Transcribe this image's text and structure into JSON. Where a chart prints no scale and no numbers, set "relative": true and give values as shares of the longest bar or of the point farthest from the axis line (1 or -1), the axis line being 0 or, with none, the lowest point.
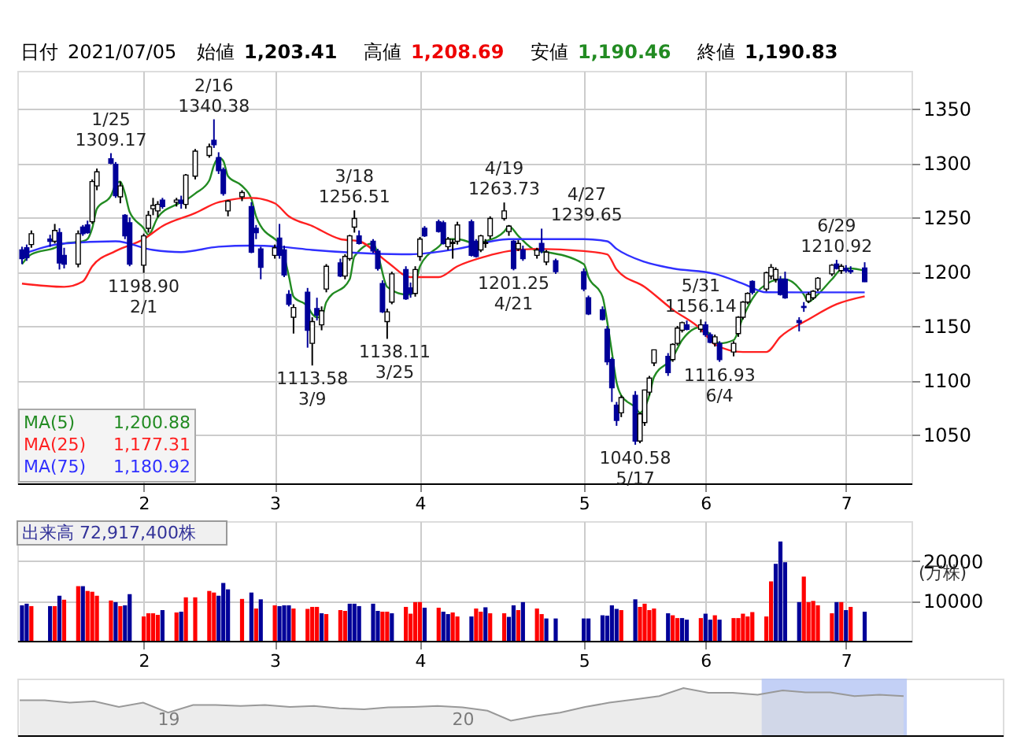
{
  "chart_data": [
    {
      "type": "candlestick",
      "title": "日付 2021/07/05 始値 1,203.41 高値 1,208.69 安値 1,190.46 終値 1,190.83",
      "x": [
        "2021-01-06",
        "2021-01-07",
        "2021-01-08",
        "2021-01-12",
        "2021-01-13",
        "2021-01-14",
        "2021-01-15",
        "2021-01-18",
        "2021-01-19",
        "2021-01-20",
        "2021-01-21",
        "2021-01-22",
        "2021-01-25",
        "2021-01-26",
        "2021-01-27",
        "2021-01-28",
        "2021-01-29",
        "2021-02-01",
        "2021-02-02",
        "2021-02-03",
        "2021-02-04",
        "2021-02-05",
        "2021-02-08",
        "2021-02-09",
        "2021-02-10",
        "2021-02-12",
        "2021-02-15",
        "2021-02-16",
        "2021-02-17",
        "2021-02-18",
        "2021-02-19",
        "2021-02-22",
        "2021-02-24",
        "2021-02-25",
        "2021-02-26",
        "2021-03-01",
        "2021-03-02",
        "2021-03-03",
        "2021-03-04",
        "2021-03-05",
        "2021-03-08",
        "2021-03-09",
        "2021-03-10",
        "2021-03-11",
        "2021-03-12",
        "2021-03-15",
        "2021-03-16",
        "2021-03-17",
        "2021-03-18",
        "2021-03-19",
        "2021-03-22",
        "2021-03-23",
        "2021-03-24",
        "2021-03-25",
        "2021-03-26",
        "2021-03-29",
        "2021-03-30",
        "2021-03-31",
        "2021-04-01",
        "2021-04-02",
        "2021-04-05",
        "2021-04-06",
        "2021-04-07",
        "2021-04-08",
        "2021-04-09",
        "2021-04-12",
        "2021-04-13",
        "2021-04-14",
        "2021-04-15",
        "2021-04-16",
        "2021-04-19",
        "2021-04-20",
        "2021-04-21",
        "2021-04-22",
        "2021-04-23",
        "2021-04-26",
        "2021-04-27",
        "2021-04-28",
        "2021-04-30",
        "2021-05-06",
        "2021-05-07",
        "2021-05-10",
        "2021-05-11",
        "2021-05-12",
        "2021-05-13",
        "2021-05-14",
        "2021-05-17",
        "2021-05-18",
        "2021-05-19",
        "2021-05-20",
        "2021-05-21",
        "2021-05-24",
        "2021-05-25",
        "2021-05-26",
        "2021-05-27",
        "2021-05-28",
        "2021-05-31",
        "2021-06-01",
        "2021-06-02",
        "2021-06-03",
        "2021-06-04",
        "2021-06-07",
        "2021-06-08",
        "2021-06-09",
        "2021-06-10",
        "2021-06-11",
        "2021-06-14",
        "2021-06-15",
        "2021-06-16",
        "2021-06-17",
        "2021-06-18",
        "2021-06-21",
        "2021-06-22",
        "2021-06-23",
        "2021-06-24",
        "2021-06-25",
        "2021-06-28",
        "2021-06-29",
        "2021-06-30",
        "2021-07-01",
        "2021-07-02",
        "2021-07-05"
      ],
      "ohlc": [
        [
          1220,
          1223,
          1207,
          1212
        ],
        [
          1222,
          1225,
          1210,
          1213
        ],
        [
          1225,
          1238,
          1222,
          1235
        ],
        [
          1230,
          1234,
          1223,
          1228
        ],
        [
          1228,
          1244,
          1226,
          1238
        ],
        [
          1236,
          1240,
          1202,
          1208
        ],
        [
          1215,
          1222,
          1203,
          1207
        ],
        [
          1207,
          1238,
          1204,
          1235
        ],
        [
          1241,
          1243,
          1233,
          1235
        ],
        [
          1243,
          1247,
          1235,
          1236
        ],
        [
          1246,
          1285,
          1244,
          1283
        ],
        [
          1279,
          1295,
          1275,
          1292
        ],
        [
          1304,
          1309.17,
          1299,
          1300
        ],
        [
          1299,
          1301,
          1268,
          1270
        ],
        [
          1269,
          1283,
          1263,
          1279
        ],
        [
          1252,
          1253,
          1230,
          1233
        ],
        [
          1245,
          1250,
          1205,
          1207
        ],
        [
          1206,
          1235,
          1198.9,
          1233
        ],
        [
          1240,
          1256,
          1236,
          1252
        ],
        [
          1258,
          1268,
          1252,
          1261
        ],
        [
          1256,
          1265,
          1250,
          1262
        ],
        [
          1266,
          1268,
          1258,
          1260
        ],
        [
          1264,
          1268,
          1260,
          1266
        ],
        [
          1266,
          1270,
          1258,
          1263
        ],
        [
          1262,
          1290,
          1258,
          1289
        ],
        [
          1288,
          1313,
          1285,
          1311
        ],
        [
          1307,
          1318,
          1305,
          1315
        ],
        [
          1321,
          1340.38,
          1314,
          1317
        ],
        [
          1305,
          1310,
          1290,
          1293
        ],
        [
          1294,
          1296,
          1270,
          1272
        ],
        [
          1256,
          1266,
          1251,
          1265
        ],
        [
          1269,
          1275,
          1265,
          1273
        ],
        [
          1260,
          1264,
          1217,
          1218
        ],
        [
          1240,
          1243,
          1230,
          1236
        ],
        [
          1221,
          1223,
          1193,
          1204
        ],
        [
          1215,
          1225,
          1212,
          1222
        ],
        [
          1231,
          1244,
          1212,
          1215
        ],
        [
          1220,
          1224,
          1195,
          1197
        ],
        [
          1179,
          1183,
          1168,
          1170
        ],
        [
          1158,
          1170,
          1143,
          1167
        ],
        [
          1181,
          1185,
          1130,
          1146
        ],
        [
          1134,
          1158,
          1113.58,
          1154
        ],
        [
          1166,
          1176,
          1155,
          1160
        ],
        [
          1151,
          1168,
          1146,
          1164
        ],
        [
          1184,
          1207,
          1181,
          1205
        ],
        [
          1208,
          1212,
          1195,
          1196
        ],
        [
          1196,
          1216,
          1193,
          1214
        ],
        [
          1212,
          1234,
          1210,
          1233
        ],
        [
          1241,
          1256.51,
          1236,
          1249
        ],
        [
          1233,
          1238,
          1225,
          1226
        ],
        [
          1228,
          1230,
          1217,
          1219
        ],
        [
          1219,
          1221,
          1201,
          1203
        ],
        [
          1189,
          1192,
          1162,
          1163
        ],
        [
          1154,
          1166,
          1138.11,
          1163
        ],
        [
          1172,
          1200,
          1170,
          1198
        ],
        [
          1202,
          1205,
          1174,
          1175
        ],
        [
          1185,
          1190,
          1176,
          1180
        ],
        [
          1180,
          1205,
          1177,
          1202
        ],
        [
          1214,
          1232,
          1210,
          1230
        ],
        [
          1240,
          1242,
          1232,
          1233
        ],
        [
          1246,
          1248,
          1236,
          1237
        ],
        [
          1245,
          1247,
          1225,
          1226
        ],
        [
          1223,
          1232,
          1220,
          1230
        ],
        [
          1226,
          1230,
          1212,
          1227
        ],
        [
          1228,
          1246,
          1225,
          1243
        ],
        [
          1246,
          1248,
          1214,
          1215
        ],
        [
          1228,
          1230,
          1213,
          1214
        ],
        [
          1220,
          1234,
          1218,
          1233
        ],
        [
          1226,
          1230,
          1222,
          1227
        ],
        [
          1233,
          1251,
          1230,
          1249
        ],
        [
          1249,
          1263.73,
          1247,
          1256
        ],
        [
          1237,
          1243,
          1233,
          1242
        ],
        [
          1228,
          1229,
          1201.25,
          1203
        ],
        [
          1221,
          1229,
          1219,
          1226
        ],
        [
          1220,
          1224,
          1210,
          1212
        ],
        [
          1215,
          1222,
          1212,
          1220
        ],
        [
          1226,
          1239.65,
          1217,
          1219
        ],
        [
          1209,
          1220,
          1206,
          1218
        ],
        [
          1210,
          1212,
          1198,
          1200
        ],
        [
          1200,
          1203,
          1182,
          1184
        ],
        [
          1176,
          1178,
          1160,
          1161
        ],
        [
          1165,
          1168,
          1155,
          1156
        ],
        [
          1147,
          1150,
          1114,
          1117
        ],
        [
          1119,
          1121,
          1080,
          1093
        ],
        [
          1077,
          1080,
          1058,
          1063
        ],
        [
          1070,
          1086,
          1066,
          1084
        ],
        [
          1086,
          1090,
          1040.58,
          1044
        ],
        [
          1044,
          1070,
          1042,
          1069
        ],
        [
          1061,
          1091,
          1058,
          1091
        ],
        [
          1089,
          1104,
          1086,
          1102
        ],
        [
          1116,
          1128,
          1113,
          1128
        ],
        [
          1122,
          1125,
          1104,
          1107
        ],
        [
          1119,
          1134,
          1117,
          1133
        ],
        [
          1134,
          1150,
          1132,
          1148
        ],
        [
          1146,
          1154,
          1144,
          1153
        ],
        [
          1151,
          1155,
          1146,
          1147
        ],
        [
          1147,
          1156.14,
          1144,
          1151
        ],
        [
          1151,
          1154,
          1140,
          1142
        ],
        [
          1142,
          1144,
          1134,
          1135
        ],
        [
          1134,
          1142,
          1131,
          1140
        ],
        [
          1134,
          1136,
          1116.93,
          1119
        ],
        [
          1126,
          1136,
          1122,
          1134
        ],
        [
          1143,
          1159,
          1140,
          1158
        ],
        [
          1158,
          1173,
          1156,
          1172
        ],
        [
          1172,
          1181,
          1170,
          1180
        ],
        [
          1191,
          1192,
          1179,
          1181
        ],
        [
          1184,
          1200,
          1182,
          1199
        ],
        [
          1196,
          1207,
          1193,
          1204
        ],
        [
          1193,
          1204,
          1190,
          1202
        ],
        [
          1193,
          1196,
          1178,
          1179
        ],
        [
          1193,
          1200,
          1175,
          1176
        ],
        [
          1155,
          1158,
          1145,
          1153
        ],
        [
          1168,
          1172,
          1163,
          1167
        ],
        [
          1173,
          1181,
          1171,
          1179
        ],
        [
          1176,
          1183,
          1174,
          1182
        ],
        [
          1184,
          1195,
          1182,
          1194
        ],
        [
          1198,
          1207,
          1196,
          1206
        ],
        [
          1207,
          1210.92,
          1202,
          1203
        ],
        [
          1201,
          1207,
          1198,
          1205
        ],
        [
          1203,
          1206,
          1199,
          1201
        ],
        [
          1201,
          1205,
          1198,
          1200
        ],
        [
          1203.41,
          1208.69,
          1190.46,
          1190.83
        ]
      ],
      "series": [
        {
          "name": "MA(5)",
          "type": "line",
          "color": "#228b22",
          "x": [
            "2021-01-06",
            "2021-01-08",
            "2021-01-13",
            "2021-01-15",
            "2021-01-19",
            "2021-01-20",
            "2021-01-21",
            "2021-01-22",
            "2021-01-25",
            "2021-01-26",
            "2021-01-27",
            "2021-01-28",
            "2021-01-29",
            "2021-02-01",
            "2021-02-02",
            "2021-02-04",
            "2021-02-08",
            "2021-02-10",
            "2021-02-12",
            "2021-02-15",
            "2021-02-16",
            "2021-02-17",
            "2021-02-18",
            "2021-02-19",
            "2021-02-22",
            "2021-02-24",
            "2021-02-25",
            "2021-02-26",
            "2021-03-01",
            "2021-03-02",
            "2021-03-03",
            "2021-03-04",
            "2021-03-05",
            "2021-03-08",
            "2021-03-09",
            "2021-03-10",
            "2021-03-11",
            "2021-03-12",
            "2021-03-17",
            "2021-03-18",
            "2021-03-22",
            "2021-03-23",
            "2021-03-25",
            "2021-03-29",
            "2021-03-30",
            "2021-03-31",
            "2021-04-01",
            "2021-04-05",
            "2021-04-07",
            "2021-04-09",
            "2021-04-13",
            "2021-04-15",
            "2021-04-19",
            "2021-04-20",
            "2021-04-22",
            "2021-04-26",
            "2021-04-28",
            "2021-05-06",
            "2021-05-07",
            "2021-05-10",
            "2021-05-11",
            "2021-05-12",
            "2021-05-13",
            "2021-05-14",
            "2021-05-17",
            "2021-05-18",
            "2021-05-19",
            "2021-05-20",
            "2021-05-21",
            "2021-05-25",
            "2021-05-27",
            "2021-05-31",
            "2021-06-02",
            "2021-06-04",
            "2021-06-07",
            "2021-06-09",
            "2021-06-11",
            "2021-06-15",
            "2021-06-17",
            "2021-06-18",
            "2021-06-22",
            "2021-06-23",
            "2021-06-24",
            "2021-06-28",
            "2021-06-30",
            "2021-07-02",
            "2021-07-05"
          ],
          "values": [
            1207,
            1216,
            1222,
            1226,
            1228,
            1230,
            1240,
            1258,
            1270,
            1280,
            1283,
            1272,
            1255,
            1240,
            1234,
            1250,
            1262,
            1266,
            1272,
            1284,
            1298,
            1305,
            1302,
            1288,
            1279,
            1267,
            1251,
            1242,
            1230,
            1226,
            1214,
            1196,
            1177,
            1168,
            1161,
            1158,
            1158,
            1172,
            1193,
            1214,
            1226,
            1216,
            1186,
            1179,
            1179,
            1186,
            1205,
            1223,
            1230,
            1230,
            1226,
            1228,
            1237,
            1242,
            1233,
            1219,
            1218,
            1207,
            1195,
            1177,
            1154,
            1126,
            1098,
            1086,
            1075,
            1070,
            1075,
            1086,
            1103,
            1121,
            1137,
            1149,
            1142,
            1134,
            1137,
            1158,
            1175,
            1191,
            1193,
            1193,
            1179,
            1172,
            1175,
            1193,
            1202,
            1203,
            1200.88
          ]
        },
        {
          "name": "MA(25)",
          "type": "line",
          "color": "#ff2020",
          "x": [
            "2021-01-06",
            "2021-01-15",
            "2021-01-19",
            "2021-01-21",
            "2021-01-26",
            "2021-02-01",
            "2021-02-05",
            "2021-02-12",
            "2021-02-17",
            "2021-02-24",
            "2021-03-01",
            "2021-03-04",
            "2021-03-09",
            "2021-03-15",
            "2021-03-19",
            "2021-03-25",
            "2021-03-30",
            "2021-04-05",
            "2021-04-09",
            "2021-04-15",
            "2021-04-20",
            "2021-04-26",
            "2021-05-06",
            "2021-05-11",
            "2021-05-13",
            "2021-05-19",
            "2021-05-25",
            "2021-05-31",
            "2021-06-03",
            "2021-06-09",
            "2021-06-14",
            "2021-06-17",
            "2021-06-23",
            "2021-06-29",
            "2021-07-05"
          ],
          "values": [
            1189,
            1186,
            1191,
            1205,
            1219,
            1230,
            1242,
            1254,
            1264,
            1268,
            1263,
            1251,
            1242,
            1230,
            1228,
            1209,
            1195,
            1195,
            1205,
            1214,
            1219,
            1221,
            1219,
            1216,
            1202,
            1186,
            1165,
            1147,
            1133,
            1126,
            1126,
            1140,
            1156,
            1170,
            1177.31
          ]
        },
        {
          "name": "MA(75)",
          "type": "line",
          "color": "#3030ff",
          "x": [
            "2021-01-06",
            "2021-01-15",
            "2021-01-26",
            "2021-02-03",
            "2021-02-09",
            "2021-02-17",
            "2021-02-24",
            "2021-03-02",
            "2021-03-09",
            "2021-03-30",
            "2021-04-09",
            "2021-04-20",
            "2021-05-06",
            "2021-05-11",
            "2021-05-13",
            "2021-05-19",
            "2021-05-25",
            "2021-06-03",
            "2021-06-09",
            "2021-06-14",
            "2021-07-05"
          ],
          "values": [
            1216,
            1226,
            1228,
            1220,
            1218,
            1223,
            1224,
            1223,
            1220,
            1216,
            1221,
            1230,
            1230,
            1228,
            1221,
            1209,
            1203,
            1198,
            1189,
            1181,
            1180.92
          ]
        }
      ],
      "ylim": [
        1005,
        1385
      ],
      "yticks": [
        1050,
        1100,
        1150,
        1200,
        1250,
        1300,
        1350
      ],
      "xlim": [
        "2021-01-05",
        "2021-07-15"
      ],
      "xticks": [
        {
          "value": "2021-02-01",
          "label": "2"
        },
        {
          "value": "2021-03-01",
          "label": "3"
        },
        {
          "value": "2021-04-01",
          "label": "4"
        },
        {
          "value": "2021-05-06",
          "label": "5"
        },
        {
          "value": "2021-06-01",
          "label": "6"
        },
        {
          "value": "2021-07-01",
          "label": "7"
        }
      ],
      "grid": true,
      "legend": "bottom left",
      "annotations": [
        "1,200.88",
        "1,177.31",
        "1,180.92",
        {
          "text": "1/25",
          "x": "2021-01-25",
          "y": 1309.17
        },
        {
          "text": "1309.17",
          "x": "2021-01-25",
          "y": 1309.17
        },
        {
          "text": "1198.90",
          "x": "2021-02-01",
          "y": 1198.9
        },
        {
          "text": "2/1",
          "x": "2021-02-01",
          "y": 1198.9
        },
        {
          "text": "2/16",
          "x": "2021-02-16",
          "y": 1340.38
        },
        {
          "text": "1340.38",
          "x": "2021-02-16",
          "y": 1340.38
        },
        {
          "text": "1113.58",
          "x": "2021-03-09",
          "y": 1113.58
        },
        {
          "text": "3/9",
          "x": "2021-03-09",
          "y": 1113.58
        },
        {
          "text": "3/18",
          "x": "2021-03-18",
          "y": 1256.51
        },
        {
          "text": "1256.51",
          "x": "2021-03-18",
          "y": 1256.51
        },
        {
          "text": "1138.11",
          "x": "2021-03-25",
          "y": 1138.11
        },
        {
          "text": "3/25",
          "x": "2021-03-25",
          "y": 1138.11
        },
        {
          "text": "4/19",
          "x": "2021-04-19",
          "y": 1263.73
        },
        {
          "text": "1263.73",
          "x": "2021-04-19",
          "y": 1263.73
        },
        {
          "text": "1201.25",
          "x": "2021-04-21",
          "y": 1201.25
        },
        {
          "text": "4/21",
          "x": "2021-04-21",
          "y": 1201.25
        },
        {
          "text": "4/27",
          "x": "2021-04-27",
          "y": 1239.65
        },
        {
          "text": "1239.65",
          "x": "2021-04-27",
          "y": 1239.65
        },
        {
          "text": "1040.58",
          "x": "2021-05-17",
          "y": 1040.58
        },
        {
          "text": "5/17",
          "x": "2021-05-17",
          "y": 1040.58
        },
        {
          "text": "5/31",
          "x": "2021-05-31",
          "y": 1156.14
        },
        {
          "text": "1156.14",
          "x": "2021-05-31",
          "y": 1156.14
        },
        {
          "text": "1116.93",
          "x": "2021-06-04",
          "y": 1116.93
        },
        {
          "text": "6/4",
          "x": "2021-06-04",
          "y": 1116.93
        },
        {
          "text": "6/29",
          "x": "2021-06-29",
          "y": 1210.92
        },
        {
          "text": "1210.92",
          "x": "2021-06-29",
          "y": 1210.92
        }
      ]
    },
    {
      "type": "bar",
      "title": "出来高 72,917,400株",
      "ylabel": "(万株)",
      "x": [
        "2021-01-06",
        "2021-01-07",
        "2021-01-08",
        "2021-01-12",
        "2021-01-13",
        "2021-01-14",
        "2021-01-15",
        "2021-01-18",
        "2021-01-19",
        "2021-01-20",
        "2021-01-21",
        "2021-01-22",
        "2021-01-25",
        "2021-01-26",
        "2021-01-27",
        "2021-01-28",
        "2021-01-29",
        "2021-02-01",
        "2021-02-02",
        "2021-02-03",
        "2021-02-04",
        "2021-02-05",
        "2021-02-08",
        "2021-02-09",
        "2021-02-10",
        "2021-02-12",
        "2021-02-15",
        "2021-02-16",
        "2021-02-17",
        "2021-02-18",
        "2021-02-19",
        "2021-02-22",
        "2021-02-24",
        "2021-02-25",
        "2021-02-26",
        "2021-03-01",
        "2021-03-02",
        "2021-03-03",
        "2021-03-04",
        "2021-03-05",
        "2021-03-08",
        "2021-03-09",
        "2021-03-10",
        "2021-03-11",
        "2021-03-12",
        "2021-03-15",
        "2021-03-16",
        "2021-03-17",
        "2021-03-18",
        "2021-03-19",
        "2021-03-22",
        "2021-03-23",
        "2021-03-24",
        "2021-03-25",
        "2021-03-26",
        "2021-03-29",
        "2021-03-30",
        "2021-03-31",
        "2021-04-01",
        "2021-04-02",
        "2021-04-05",
        "2021-04-06",
        "2021-04-07",
        "2021-04-08",
        "2021-04-09",
        "2021-04-12",
        "2021-04-13",
        "2021-04-14",
        "2021-04-15",
        "2021-04-16",
        "2021-04-19",
        "2021-04-20",
        "2021-04-21",
        "2021-04-22",
        "2021-04-23",
        "2021-04-26",
        "2021-04-27",
        "2021-04-28",
        "2021-04-30",
        "2021-05-06",
        "2021-05-07",
        "2021-05-10",
        "2021-05-11",
        "2021-05-12",
        "2021-05-13",
        "2021-05-14",
        "2021-05-17",
        "2021-05-18",
        "2021-05-19",
        "2021-05-20",
        "2021-05-21",
        "2021-05-24",
        "2021-05-25",
        "2021-05-26",
        "2021-05-27",
        "2021-05-28",
        "2021-05-31",
        "2021-06-01",
        "2021-06-02",
        "2021-06-03",
        "2021-06-04",
        "2021-06-07",
        "2021-06-08",
        "2021-06-09",
        "2021-06-10",
        "2021-06-11",
        "2021-06-14",
        "2021-06-15",
        "2021-06-16",
        "2021-06-17",
        "2021-06-18",
        "2021-06-21",
        "2021-06-22",
        "2021-06-23",
        "2021-06-24",
        "2021-06-25",
        "2021-06-28",
        "2021-06-29",
        "2021-06-30",
        "2021-07-01",
        "2021-07-02",
        "2021-07-05"
      ],
      "values": [
        8900,
        9300,
        8700,
        8700,
        8700,
        11300,
        10300,
        13700,
        13700,
        12500,
        12300,
        11300,
        10100,
        9700,
        8700,
        8900,
        11700,
        6100,
        6900,
        6900,
        6500,
        7700,
        7100,
        7300,
        10900,
        10900,
        12500,
        12100,
        11300,
        14500,
        12900,
        10500,
        12100,
        8100,
        10400,
        8900,
        8700,
        8900,
        8900,
        8100,
        8000,
        8500,
        8500,
        6900,
        6700,
        7700,
        7500,
        9300,
        9300,
        8700,
        9300,
        7500,
        7300,
        7300,
        6900,
        8500,
        6800,
        9700,
        9700,
        8300,
        8300,
        7300,
        6700,
        7100,
        6100,
        6100,
        8100,
        7300,
        8400,
        6900,
        6900,
        6000,
        8900,
        7700,
        9700,
        8100,
        6700,
        5600,
        5600,
        5600,
        5600,
        6400,
        6300,
        8900,
        8000,
        7700,
        10400,
        8500,
        9300,
        7700,
        8100,
        6900,
        6400,
        5700,
        5700,
        5300,
        5700,
        6800,
        5300,
        6400,
        5300,
        5700,
        5700,
        6800,
        6100,
        7200,
        6100,
        14900,
        19300,
        24900,
        19700,
        9700,
        16100,
        9700,
        10000,
        8900,
        6900,
        9700,
        9700,
        7700,
        8500,
        7292
      ],
      "colors": [
        "#000099",
        "#000099",
        "#ff0000",
        "#000099",
        "#ff0000",
        "#000099",
        "#ff0000",
        "#ff0000",
        "#000099",
        "#ff0000",
        "#ff0000",
        "#ff0000",
        "#ff0000",
        "#000099",
        "#ff0000",
        "#000099",
        "#000099",
        "#ff0000",
        "#ff0000",
        "#ff0000",
        "#ff0000",
        "#000099",
        "#ff0000",
        "#000099",
        "#ff0000",
        "#ff0000",
        "#ff0000",
        "#ff0000",
        "#000099",
        "#000099",
        "#000099",
        "#ff0000",
        "#000099",
        "#ff0000",
        "#000099",
        "#ff0000",
        "#000099",
        "#000099",
        "#000099",
        "#ff0000",
        "#ff0000",
        "#ff0000",
        "#ff0000",
        "#000099",
        "#ff0000",
        "#ff0000",
        "#ff0000",
        "#000099",
        "#000099",
        "#000099",
        "#000099",
        "#000099",
        "#ff0000",
        "#ff0000",
        "#000099",
        "#ff0000",
        "#ff0000",
        "#ff0000",
        "#ff0000",
        "#000099",
        "#ff0000",
        "#000099",
        "#000099",
        "#ff0000",
        "#ff0000",
        "#000099",
        "#ff0000",
        "#ff0000",
        "#000099",
        "#ff0000",
        "#ff0000",
        "#000099",
        "#000099",
        "#ff0000",
        "#000099",
        "#ff0000",
        "#ff0000",
        "#000099",
        "#000099",
        "#000099",
        "#000099",
        "#000099",
        "#000099",
        "#000099",
        "#000099",
        "#ff0000",
        "#000099",
        "#ff0000",
        "#ff0000",
        "#ff0000",
        "#ff0000",
        "#000099",
        "#ff0000",
        "#ff0000",
        "#000099",
        "#000099",
        "#ff0000",
        "#000099",
        "#000099",
        "#ff0000",
        "#000099",
        "#ff0000",
        "#ff0000",
        "#ff0000",
        "#ff0000",
        "#ff0000",
        "#ff0000",
        "#ff0000",
        "#000099",
        "#000099",
        "#000099",
        "#000099",
        "#ff0000",
        "#ff0000",
        "#ff0000",
        "#ff0000",
        "#ff0000",
        "#000099",
        "#ff0000",
        "#000099",
        "#ff0000",
        "#000099"
      ],
      "ylim": [
        0,
        30000
      ],
      "yticks": [
        10000,
        20000
      ],
      "xlim": [
        "2021-01-05",
        "2021-07-15"
      ],
      "xticks": [
        {
          "value": "2021-02-01",
          "label": "2"
        },
        {
          "value": "2021-03-01",
          "label": "3"
        },
        {
          "value": "2021-04-01",
          "label": "4"
        },
        {
          "value": "2021-05-06",
          "label": "5"
        },
        {
          "value": "2021-06-01",
          "label": "6"
        },
        {
          "value": "2021-07-01",
          "label": "7"
        }
      ],
      "grid": true
    },
    {
      "type": "area",
      "relative": true,
      "x": [
        "2018-07",
        "2018-08",
        "2018-09",
        "2018-10",
        "2018-11",
        "2018-12",
        "2019-01",
        "2019-02",
        "2019-03",
        "2019-04",
        "2019-05",
        "2019-06",
        "2019-07",
        "2019-08",
        "2019-09",
        "2019-10",
        "2019-11",
        "2019-12",
        "2020-01",
        "2020-02",
        "2020-03",
        "2020-04",
        "2020-05",
        "2020-06",
        "2020-07",
        "2020-08",
        "2020-09",
        "2020-10",
        "2020-11",
        "2020-12",
        "2021-01",
        "2021-02",
        "2021-03",
        "2021-04",
        "2021-05",
        "2021-06",
        "2021-07"
      ],
      "series": [
        {
          "color": "#999999",
          "values": [
            0.74,
            0.74,
            0.69,
            0.72,
            0.6,
            0.69,
            0.48,
            0.64,
            0.64,
            0.62,
            0.64,
            0.6,
            0.62,
            0.57,
            0.55,
            0.59,
            0.6,
            0.62,
            0.59,
            0.52,
            0.31,
            0.41,
            0.48,
            0.6,
            0.69,
            0.76,
            0.83,
            1,
            0.9,
            0.9,
            0.86,
            0.95,
            0.91,
            0.91,
            0.83,
            0.86,
            0.83
          ]
        }
      ],
      "xlim": [
        "2018-06-28",
        "2021-11-01"
      ],
      "xticks": [
        {
          "value": "2019-01-01",
          "label": "19"
        },
        {
          "value": "2020-01-01",
          "label": "20"
        }
      ],
      "bands": [
        {
          "axis": "x",
          "from": "2021-01-06",
          "to": "2021-07-05",
          "color": "#b4c4f4"
        }
      ]
    }
  ]
}
